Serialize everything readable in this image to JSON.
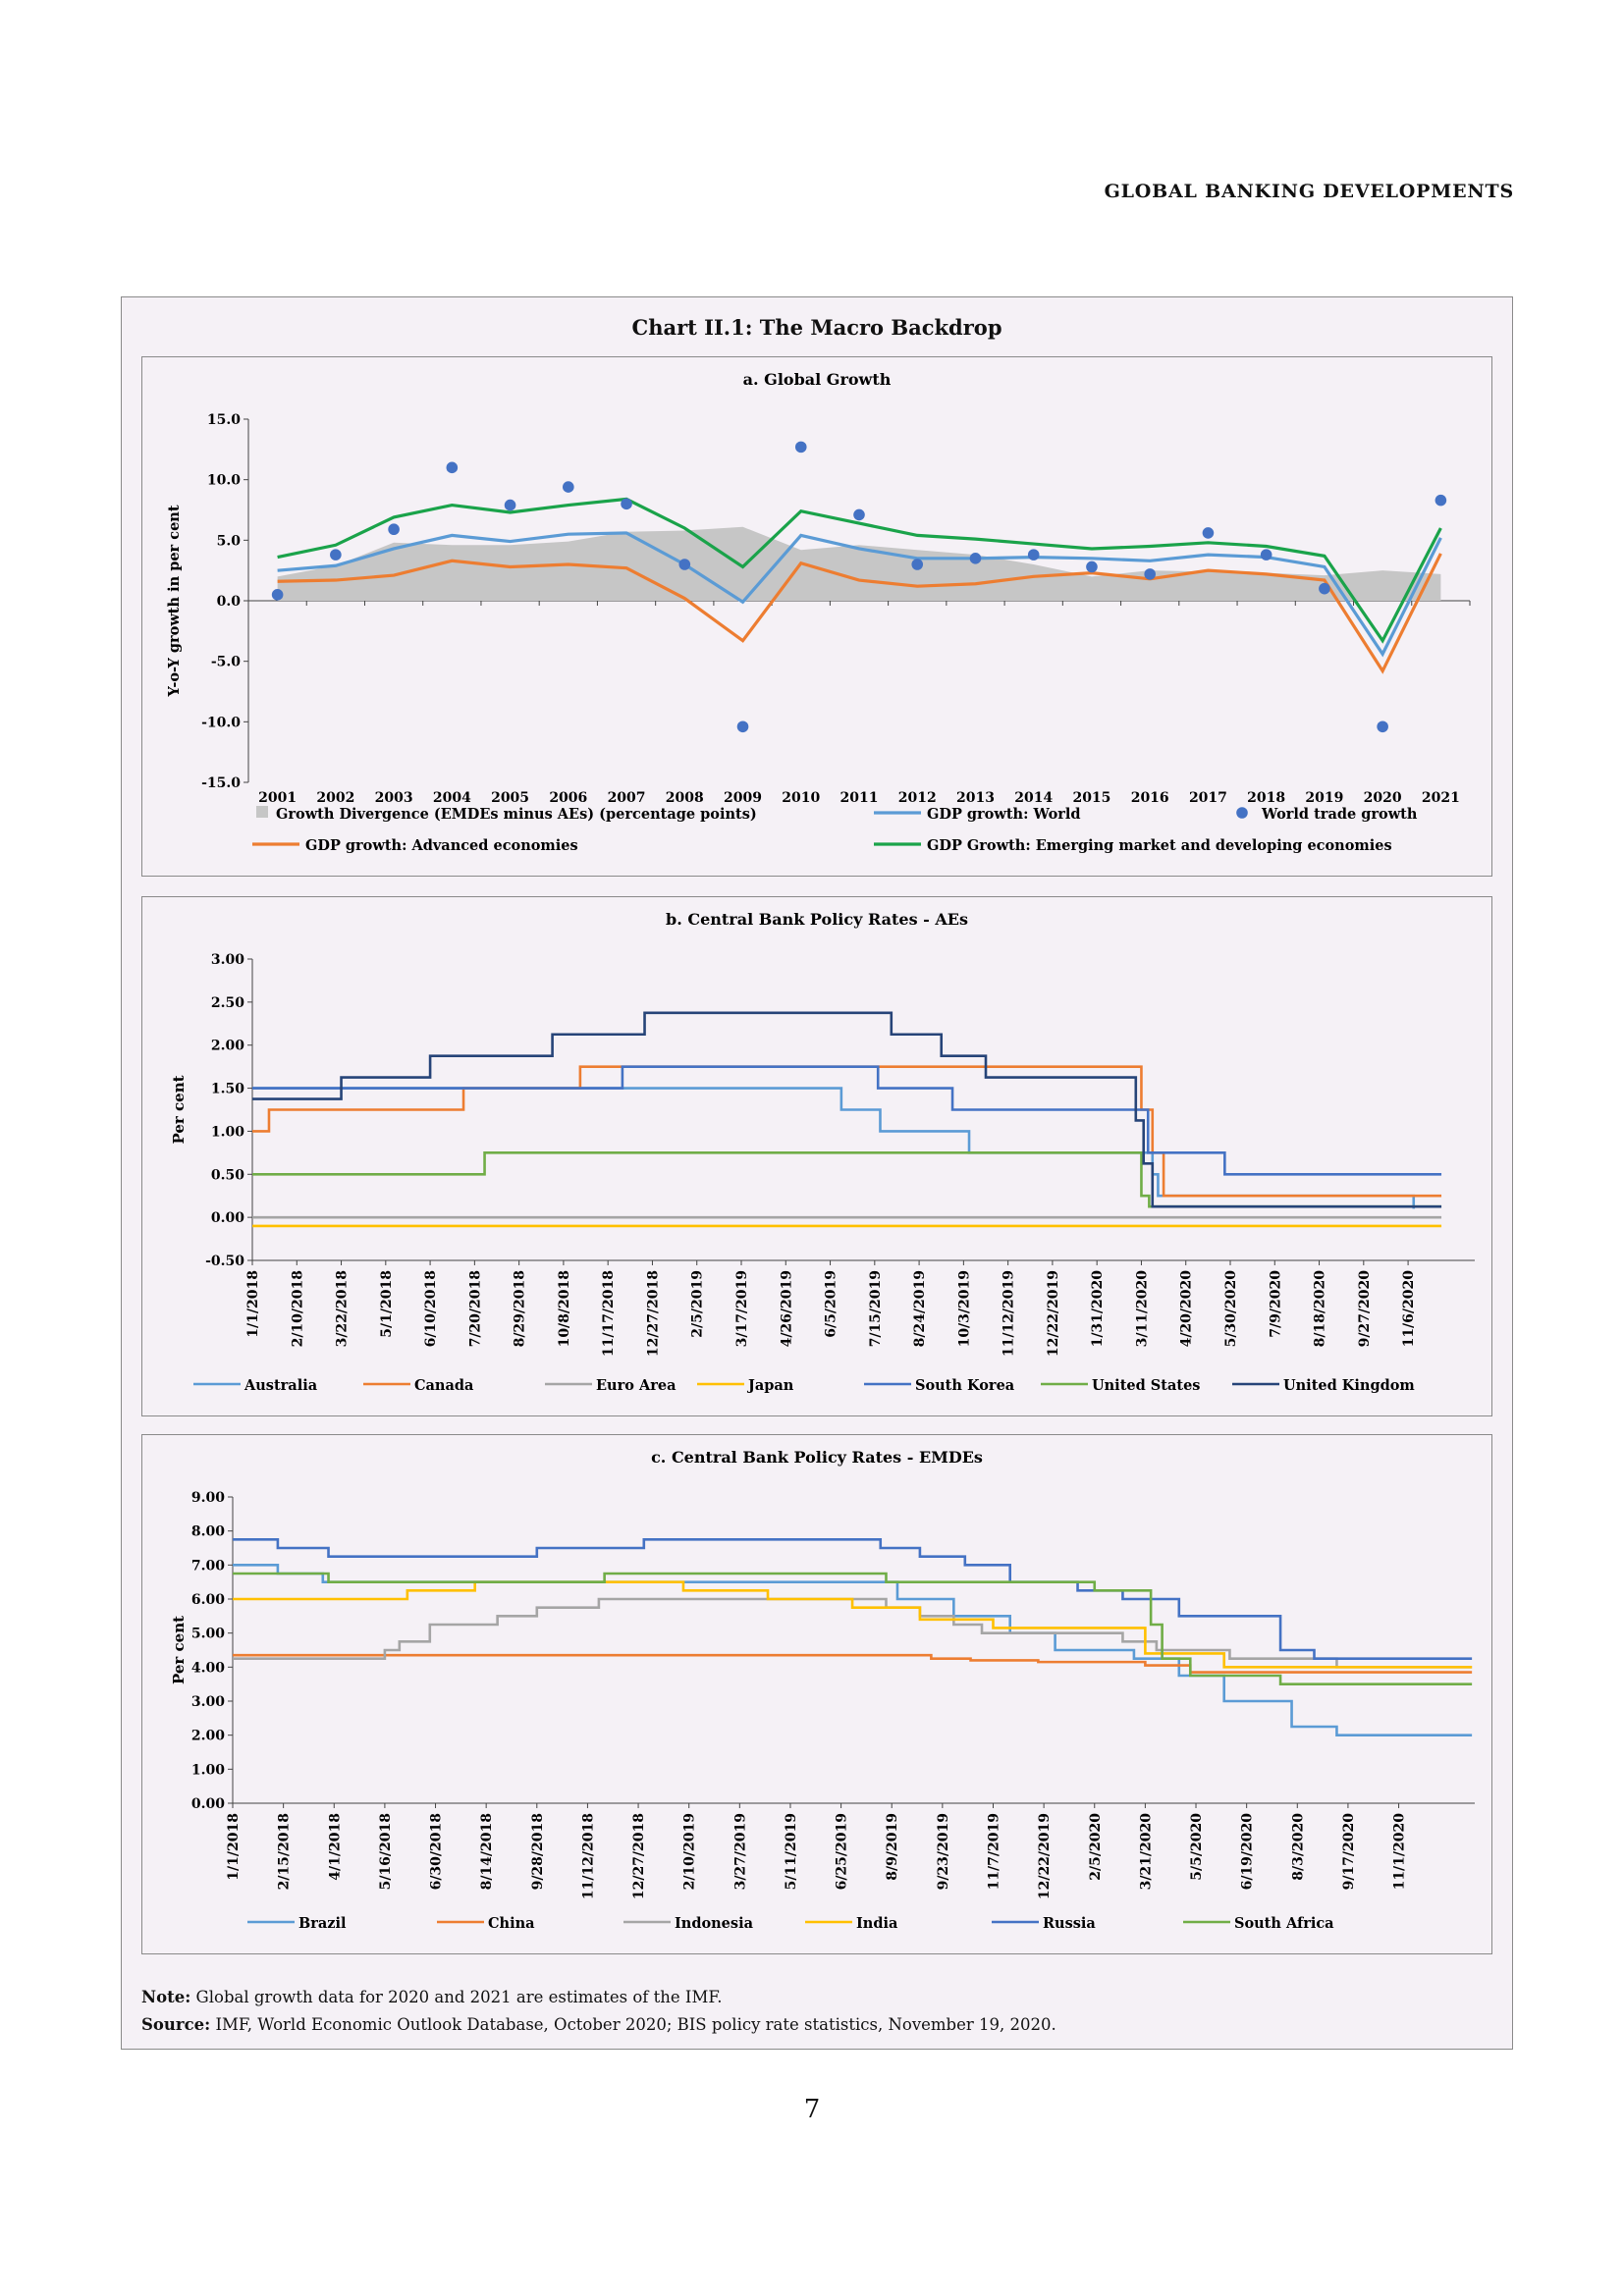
{
  "header": {
    "running_title": "GLOBAL BANKING DEVELOPMENTS"
  },
  "chart_title": "Chart II.1: The Macro Backdrop",
  "footer": {
    "note_label": "Note:",
    "note_text": " Global growth data for 2020 and 2021 are estimates of the IMF.",
    "source_label": "Source:",
    "source_text": " IMF, World Economic Outlook Database, October 2020; BIS policy rate statistics, November 19, 2020.",
    "page_number": "7"
  },
  "chart_data": [
    {
      "type": "line",
      "title": "a. Global Growth",
      "ylabel": "Y-o-Y growth in per cent",
      "xlabel": "",
      "ylim": [
        -15,
        15
      ],
      "yticks": [
        "15.0",
        "10.0",
        "5.0",
        "0.0",
        "-5.0",
        "-10.0",
        "-15.0"
      ],
      "categories": [
        "2001",
        "2002",
        "2003",
        "2004",
        "2005",
        "2006",
        "2007",
        "2008",
        "2009",
        "2010",
        "2011",
        "2012",
        "2013",
        "2014",
        "2015",
        "2016",
        "2017",
        "2018",
        "2019",
        "2020",
        "2021"
      ],
      "grid": false,
      "legend_position": "bottom",
      "series": [
        {
          "name": "Growth Divergence (EMDEs minus AEs) (percentage points)",
          "kind": "area",
          "color": "#c6c6c6",
          "values": [
            2.0,
            2.9,
            4.8,
            4.6,
            4.6,
            4.9,
            5.7,
            5.8,
            6.1,
            4.2,
            4.6,
            4.2,
            3.8,
            3.0,
            2.0,
            2.5,
            2.4,
            2.3,
            2.1,
            2.5,
            2.2
          ]
        },
        {
          "name": "GDP growth: World",
          "kind": "line",
          "color": "#5b9bd5",
          "values": [
            2.5,
            2.9,
            4.3,
            5.4,
            4.9,
            5.5,
            5.6,
            3.0,
            -0.1,
            5.4,
            4.3,
            3.5,
            3.5,
            3.6,
            3.5,
            3.3,
            3.8,
            3.6,
            2.8,
            -4.4,
            5.2
          ]
        },
        {
          "name": "World trade growth",
          "kind": "scatter",
          "color": "#4472c4",
          "values": [
            0.5,
            3.8,
            5.9,
            11.0,
            7.9,
            9.4,
            8.0,
            3.0,
            -10.4,
            12.7,
            7.1,
            3.0,
            3.5,
            3.8,
            2.8,
            2.2,
            5.6,
            3.8,
            1.0,
            -10.4,
            8.3
          ]
        },
        {
          "name": "GDP growth: Advanced economies",
          "kind": "line",
          "color": "#ed7d31",
          "values": [
            1.6,
            1.7,
            2.1,
            3.3,
            2.8,
            3.0,
            2.7,
            0.2,
            -3.3,
            3.1,
            1.7,
            1.2,
            1.4,
            2.0,
            2.3,
            1.8,
            2.5,
            2.2,
            1.7,
            -5.8,
            3.9
          ]
        },
        {
          "name": "GDP Growth: Emerging market and developing economies",
          "kind": "line",
          "color": "#1aa34a",
          "values": [
            3.6,
            4.6,
            6.9,
            7.9,
            7.3,
            7.9,
            8.4,
            6.0,
            2.8,
            7.4,
            6.4,
            5.4,
            5.1,
            4.7,
            4.3,
            4.5,
            4.8,
            4.5,
            3.7,
            -3.3,
            6.0
          ]
        }
      ]
    },
    {
      "type": "line",
      "title": "b. Central Bank Policy Rates - AEs",
      "ylabel": "Per cent",
      "xlabel": "",
      "ylim": [
        -0.5,
        3.0
      ],
      "yticks": [
        "3.00",
        "2.50",
        "2.00",
        "1.50",
        "1.00",
        "0.50",
        "0.00",
        "-0.50"
      ],
      "xticks": [
        "1/1/2018",
        "2/10/2018",
        "3/22/2018",
        "5/1/2018",
        "6/10/2018",
        "7/20/2018",
        "8/29/2018",
        "10/8/2018",
        "11/17/2018",
        "12/27/2018",
        "2/5/2019",
        "3/17/2019",
        "4/26/2019",
        "6/5/2019",
        "7/15/2019",
        "8/24/2019",
        "10/3/2019",
        "11/12/2019",
        "12/22/2019",
        "1/31/2020",
        "3/11/2020",
        "4/20/2020",
        "5/30/2020",
        "7/9/2020",
        "8/18/2020",
        "9/27/2020",
        "11/6/2020"
      ],
      "x_unit": "step-days-from-first-tick",
      "x_end": 1070,
      "legend_position": "bottom",
      "series": [
        {
          "name": "Australia",
          "color": "#5b9bd5",
          "steps": [
            [
              0,
              1.5
            ],
            [
              530,
              1.25
            ],
            [
              565,
              1.0
            ],
            [
              645,
              0.75
            ],
            [
              810,
              0.5
            ],
            [
              815,
              0.25
            ],
            [
              1045,
              0.1
            ]
          ],
          "end": 1045
        },
        {
          "name": "Canada",
          "color": "#ed7d31",
          "steps": [
            [
              0,
              1.0
            ],
            [
              15,
              1.25
            ],
            [
              190,
              1.5
            ],
            [
              295,
              1.75
            ],
            [
              800,
              1.25
            ],
            [
              810,
              0.75
            ],
            [
              820,
              0.25
            ]
          ],
          "end": 1070
        },
        {
          "name": "Euro Area",
          "color": "#a5a5a5",
          "steps": [
            [
              0,
              0.0
            ]
          ],
          "end": 1070
        },
        {
          "name": "Japan",
          "color": "#ffc000",
          "steps": [
            [
              0,
              -0.1
            ]
          ],
          "end": 1070
        },
        {
          "name": "South Korea",
          "color": "#4472c4",
          "steps": [
            [
              0,
              1.5
            ],
            [
              333,
              1.75
            ],
            [
              563,
              1.5
            ],
            [
              630,
              1.25
            ],
            [
              806,
              0.75
            ],
            [
              875,
              0.5
            ]
          ],
          "end": 1070
        },
        {
          "name": "United States",
          "color": "#70ad47",
          "steps": [
            [
              0,
              0.5
            ],
            [
              209,
              0.75
            ],
            [
              800,
              0.25
            ],
            [
              807,
              0.125
            ]
          ],
          "end": 1070
        },
        {
          "name": "United Kingdom",
          "color": "#264478",
          "steps": [
            [
              0,
              1.375
            ],
            [
              80,
              1.625
            ],
            [
              160,
              1.875
            ],
            [
              270,
              2.125
            ],
            [
              353,
              2.375
            ],
            [
              575,
              2.125
            ],
            [
              620,
              1.875
            ],
            [
              660,
              1.625
            ],
            [
              795,
              1.125
            ],
            [
              802,
              0.625
            ],
            [
              810,
              0.125
            ]
          ],
          "end": 1070
        }
      ]
    },
    {
      "type": "line",
      "title": "c. Central Bank Policy Rates - EMDEs",
      "ylabel": "Per cent",
      "xlabel": "",
      "ylim": [
        0,
        9.0
      ],
      "yticks": [
        "9.00",
        "8.00",
        "7.00",
        "6.00",
        "5.00",
        "4.00",
        "3.00",
        "2.00",
        "1.00",
        "0.00"
      ],
      "xticks": [
        "1/1/2018",
        "2/15/2018",
        "4/1/2018",
        "5/16/2018",
        "6/30/2018",
        "8/14/2018",
        "9/28/2018",
        "11/12/2018",
        "12/27/2018",
        "2/10/2019",
        "3/27/2019",
        "5/11/2019",
        "6/25/2019",
        "8/9/2019",
        "9/23/2019",
        "11/7/2019",
        "12/22/2019",
        "2/5/2020",
        "3/21/2020",
        "5/5/2020",
        "6/19/2020",
        "8/3/2020",
        "9/17/2020",
        "11/1/2020"
      ],
      "x_unit": "step-days-from-first-tick",
      "x_end": 1100,
      "legend_position": "bottom",
      "series": [
        {
          "name": "Brazil",
          "color": "#5b9bd5",
          "steps": [
            [
              0,
              7.0
            ],
            [
              40,
              6.75
            ],
            [
              80,
              6.5
            ],
            [
              590,
              6.0
            ],
            [
              640,
              5.5
            ],
            [
              690,
              5.0
            ],
            [
              730,
              4.5
            ],
            [
              800,
              4.25
            ],
            [
              840,
              3.75
            ],
            [
              880,
              3.0
            ],
            [
              940,
              2.25
            ],
            [
              980,
              2.0
            ]
          ],
          "end": 1100
        },
        {
          "name": "China",
          "color": "#ed7d31",
          "steps": [
            [
              0,
              4.35
            ],
            [
              620,
              4.25
            ],
            [
              655,
              4.2
            ],
            [
              715,
              4.15
            ],
            [
              810,
              4.05
            ],
            [
              850,
              3.85
            ]
          ],
          "end": 1100
        },
        {
          "name": "Indonesia",
          "color": "#a5a5a5",
          "steps": [
            [
              0,
              4.25
            ],
            [
              135,
              4.5
            ],
            [
              148,
              4.75
            ],
            [
              175,
              5.25
            ],
            [
              235,
              5.5
            ],
            [
              270,
              5.75
            ],
            [
              325,
              6.0
            ],
            [
              580,
              5.75
            ],
            [
              610,
              5.5
            ],
            [
              640,
              5.25
            ],
            [
              665,
              5.0
            ],
            [
              790,
              4.75
            ],
            [
              820,
              4.5
            ],
            [
              885,
              4.25
            ],
            [
              980,
              4.0
            ]
          ],
          "end": 1100
        },
        {
          "name": "India",
          "color": "#ffc000",
          "steps": [
            [
              0,
              6.0
            ],
            [
              155,
              6.25
            ],
            [
              215,
              6.5
            ],
            [
              400,
              6.25
            ],
            [
              475,
              6.0
            ],
            [
              550,
              5.75
            ],
            [
              610,
              5.4
            ],
            [
              675,
              5.15
            ],
            [
              810,
              4.4
            ],
            [
              880,
              4.0
            ]
          ],
          "end": 1100
        },
        {
          "name": "Russia",
          "color": "#4472c4",
          "steps": [
            [
              0,
              7.75
            ],
            [
              40,
              7.5
            ],
            [
              85,
              7.25
            ],
            [
              270,
              7.5
            ],
            [
              365,
              7.75
            ],
            [
              575,
              7.5
            ],
            [
              610,
              7.25
            ],
            [
              650,
              7.0
            ],
            [
              690,
              6.5
            ],
            [
              750,
              6.25
            ],
            [
              790,
              6.0
            ],
            [
              840,
              5.5
            ],
            [
              930,
              4.5
            ],
            [
              960,
              4.25
            ]
          ],
          "end": 1100
        },
        {
          "name": "South Africa",
          "color": "#70ad47",
          "steps": [
            [
              0,
              6.75
            ],
            [
              85,
              6.5
            ],
            [
              330,
              6.75
            ],
            [
              580,
              6.5
            ],
            [
              765,
              6.25
            ],
            [
              815,
              5.25
            ],
            [
              825,
              4.25
            ],
            [
              850,
              3.75
            ],
            [
              930,
              3.5
            ]
          ],
          "end": 1100
        }
      ]
    }
  ]
}
